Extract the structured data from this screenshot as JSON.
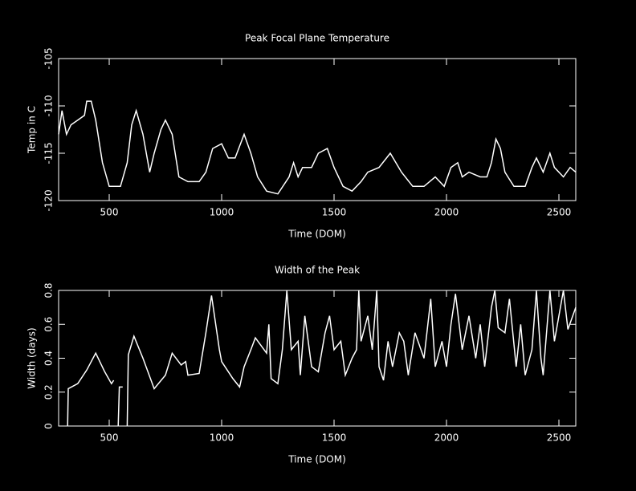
{
  "chart_data": [
    {
      "type": "line",
      "title": "Peak Focal Plane Temperature",
      "xlabel": "Time (DOM)",
      "ylabel": "Temp in C",
      "color": "#ffffff",
      "xlim": [
        275,
        2575
      ],
      "ylim": [
        -120,
        -105
      ],
      "xticks": [
        500,
        1000,
        1500,
        2000,
        2500
      ],
      "yticks": [
        -120,
        -115,
        -110,
        -105
      ],
      "x": [
        275,
        290,
        310,
        330,
        360,
        390,
        400,
        420,
        440,
        470,
        500,
        550,
        580,
        600,
        620,
        650,
        680,
        700,
        730,
        750,
        780,
        810,
        850,
        900,
        930,
        960,
        1000,
        1030,
        1060,
        1100,
        1130,
        1160,
        1200,
        1250,
        1300,
        1320,
        1340,
        1360,
        1400,
        1430,
        1470,
        1500,
        1540,
        1580,
        1620,
        1650,
        1700,
        1750,
        1800,
        1850,
        1900,
        1950,
        1990,
        2020,
        2050,
        2070,
        2100,
        2150,
        2180,
        2200,
        2220,
        2240,
        2260,
        2300,
        2350,
        2380,
        2400,
        2430,
        2460,
        2480,
        2520,
        2550,
        2575
      ],
      "values": [
        -113,
        -110.5,
        -113,
        -112,
        -111.5,
        -111,
        -109.5,
        -109.5,
        -111.5,
        -116,
        -118.5,
        -118.5,
        -116,
        -112,
        -110.5,
        -113,
        -117,
        -115,
        -112.5,
        -111.5,
        -113,
        -117.5,
        -118,
        -118,
        -117,
        -114.5,
        -114,
        -115.5,
        -115.5,
        -113,
        -115,
        -117.5,
        -119,
        -119.3,
        -117.5,
        -116,
        -117.5,
        -116.5,
        -116.5,
        -115,
        -114.5,
        -116.5,
        -118.5,
        -119,
        -118,
        -117,
        -116.5,
        -115,
        -117,
        -118.5,
        -118.5,
        -117.5,
        -118.5,
        -116.5,
        -116,
        -117.5,
        -117,
        -117.5,
        -117.5,
        -116,
        -113.5,
        -114.5,
        -117,
        -118.5,
        -118.5,
        -116.5,
        -115.5,
        -117,
        -115,
        -116.5,
        -117.5,
        -116.5,
        -117
      ]
    },
    {
      "type": "line",
      "title": "Width of the Peak",
      "xlabel": "Time (DOM)",
      "ylabel": "Width (days)",
      "color": "#ffffff",
      "xlim": [
        275,
        2575
      ],
      "ylim": [
        0,
        0.8
      ],
      "xticks": [
        500,
        1000,
        1500,
        2000,
        2500
      ],
      "yticks": [
        0,
        0.2,
        0.4,
        0.6,
        0.8
      ],
      "x": [
        315,
        318,
        360,
        400,
        440,
        480,
        510,
        520,
        530,
        540,
        545,
        560,
        570,
        580,
        585,
        610,
        650,
        700,
        750,
        780,
        820,
        840,
        850,
        900,
        930,
        955,
        990,
        1000,
        1050,
        1080,
        1100,
        1130,
        1150,
        1200,
        1210,
        1220,
        1250,
        1270,
        1290,
        1310,
        1340,
        1350,
        1370,
        1400,
        1430,
        1460,
        1480,
        1500,
        1530,
        1550,
        1580,
        1600,
        1610,
        1620,
        1650,
        1670,
        1690,
        1700,
        1720,
        1740,
        1760,
        1790,
        1810,
        1830,
        1860,
        1900,
        1930,
        1950,
        1980,
        2000,
        2020,
        2040,
        2070,
        2100,
        2130,
        2150,
        2170,
        2200,
        2215,
        2230,
        2260,
        2280,
        2310,
        2330,
        2350,
        2380,
        2400,
        2420,
        2430,
        2460,
        2480,
        2520,
        2540,
        2575
      ],
      "values": [
        0,
        0.22,
        0.25,
        0.33,
        0.43,
        0.32,
        0.25,
        0.27,
        null,
        0,
        0.23,
        0.23,
        null,
        0,
        0.42,
        0.53,
        0.4,
        0.22,
        0.3,
        0.43,
        0.36,
        0.38,
        0.3,
        0.31,
        0.55,
        0.77,
        0.45,
        0.38,
        0.28,
        0.23,
        0.35,
        0.45,
        0.52,
        0.43,
        0.6,
        0.28,
        0.25,
        0.45,
        0.8,
        0.45,
        0.5,
        0.3,
        0.65,
        0.35,
        0.32,
        0.55,
        0.65,
        0.45,
        0.5,
        0.3,
        0.4,
        0.45,
        0.8,
        0.5,
        0.65,
        0.45,
        0.8,
        0.35,
        0.27,
        0.5,
        0.35,
        0.55,
        0.5,
        0.3,
        0.55,
        0.4,
        0.75,
        0.35,
        0.5,
        0.35,
        0.6,
        0.78,
        0.45,
        0.65,
        0.4,
        0.6,
        0.35,
        0.7,
        0.8,
        0.58,
        0.55,
        0.75,
        0.35,
        0.6,
        0.3,
        0.45,
        0.8,
        0.4,
        0.3,
        0.8,
        0.5,
        0.8,
        0.57,
        0.7
      ]
    }
  ]
}
